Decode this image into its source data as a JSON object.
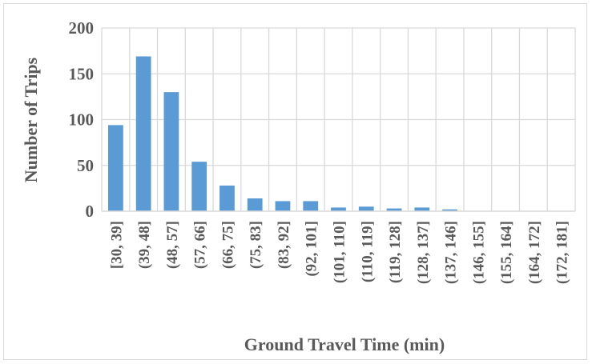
{
  "chart_data": {
    "type": "bar",
    "title": "",
    "xlabel": "Ground Travel Time (min)",
    "ylabel": "Number of Trips",
    "ylim": [
      0,
      200
    ],
    "yticks": [
      0,
      50,
      100,
      150,
      200
    ],
    "grid": true,
    "bar_color": "#5b9bd5",
    "grid_color": "#d9d9d9",
    "text_color": "#595959",
    "categories": [
      "[30, 39]",
      "(39, 48]",
      "(48, 57]",
      "(57, 66]",
      "(66, 75]",
      "(75, 83]",
      "(83, 92]",
      "(92, 101]",
      "(101, 110]",
      "(110, 119]",
      "(119, 128]",
      "(128, 137]",
      "(137, 146]",
      "(146, 155]",
      "(155, 164]",
      "(164, 172]",
      "(172, 181]"
    ],
    "values": [
      94,
      169,
      130,
      54,
      28,
      14,
      11,
      11,
      4,
      5,
      3,
      4,
      2,
      0,
      0,
      0,
      0
    ]
  }
}
